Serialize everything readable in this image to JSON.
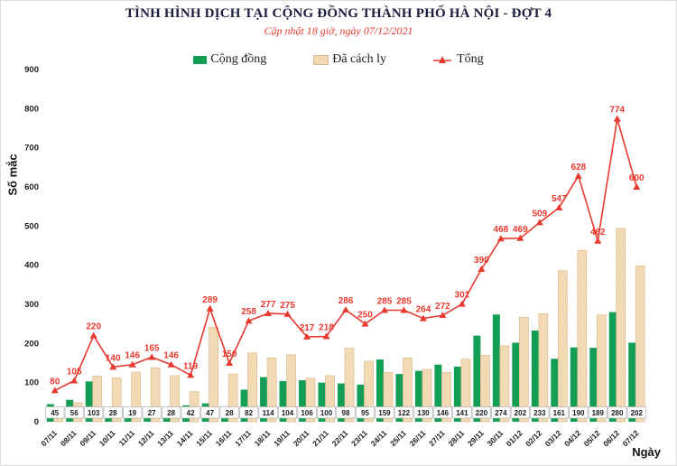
{
  "header": {
    "title": "TÌNH HÌNH DỊCH TẠI CỘNG ĐỒNG THÀNH PHỐ HÀ NỘI - ĐỢT 4",
    "subtitle": "Cập nhật 18 giờ, ngày 07/12/2021"
  },
  "colors": {
    "title_text": "#1d1d3f",
    "subtitle_text": "#e8392e",
    "community_green": "#129e55",
    "isolated_tan": "#f7e4c6",
    "isolated_tan_dot": "#ecd0a4",
    "total_red": "#e8392e"
  },
  "chart_data": {
    "type": "bar+line combo",
    "title": "TÌNH HÌNH DỊCH TẠI CỘNG ĐỒNG THÀNH PHỐ HÀ NỘI - ĐỢT 4",
    "subtitle": "Cập nhật 18 giờ, ngày 07/12/2021",
    "xlabel": "Ngày",
    "ylabel": "Số mắc",
    "ylim": [
      0,
      900
    ],
    "ytick_step": 100,
    "grid": false,
    "legend_position": "top",
    "categories": [
      "07/11",
      "08/11",
      "09/11",
      "10/11",
      "11/11",
      "12/11",
      "13/11",
      "14/11",
      "15/11",
      "16/11",
      "17/11",
      "18/11",
      "19/11",
      "20/11",
      "21/11",
      "22/11",
      "23/11",
      "24/11",
      "25/11",
      "26/11",
      "27/11",
      "28/11",
      "29/11",
      "30/11",
      "01/12",
      "02/12",
      "03/12",
      "04/12",
      "05/12",
      "06/12",
      "07/12"
    ],
    "series": [
      {
        "name": "Cộng đồng",
        "type": "bar",
        "color": "#129e55",
        "labels_shown": true,
        "values": [
          45,
          56,
          103,
          28,
          19,
          27,
          28,
          42,
          47,
          28,
          82,
          114,
          104,
          106,
          100,
          98,
          95,
          159,
          122,
          130,
          146,
          141,
          220,
          274,
          202,
          233,
          161,
          190,
          189,
          280,
          202
        ]
      },
      {
        "name": "Đã cách ly",
        "type": "bar",
        "color": "#f7e4c6",
        "pattern": "checker",
        "labels_shown": false,
        "estimated_from_bars": true,
        "values": [
          35,
          49,
          117,
          112,
          127,
          138,
          118,
          77,
          242,
          122,
          176,
          163,
          171,
          111,
          118,
          188,
          155,
          126,
          163,
          134,
          126,
          160,
          170,
          194,
          267,
          276,
          386,
          438,
          273,
          494,
          398
        ]
      },
      {
        "name": "Tổng",
        "type": "line",
        "color": "#e8392e",
        "marker": "triangle",
        "labels_shown": true,
        "values": [
          80,
          105,
          220,
          140,
          146,
          165,
          146,
          119,
          289,
          150,
          258,
          277,
          275,
          217,
          218,
          286,
          250,
          285,
          285,
          264,
          272,
          301,
          390,
          468,
          469,
          509,
          547,
          628,
          462,
          774,
          600
        ]
      }
    ]
  }
}
